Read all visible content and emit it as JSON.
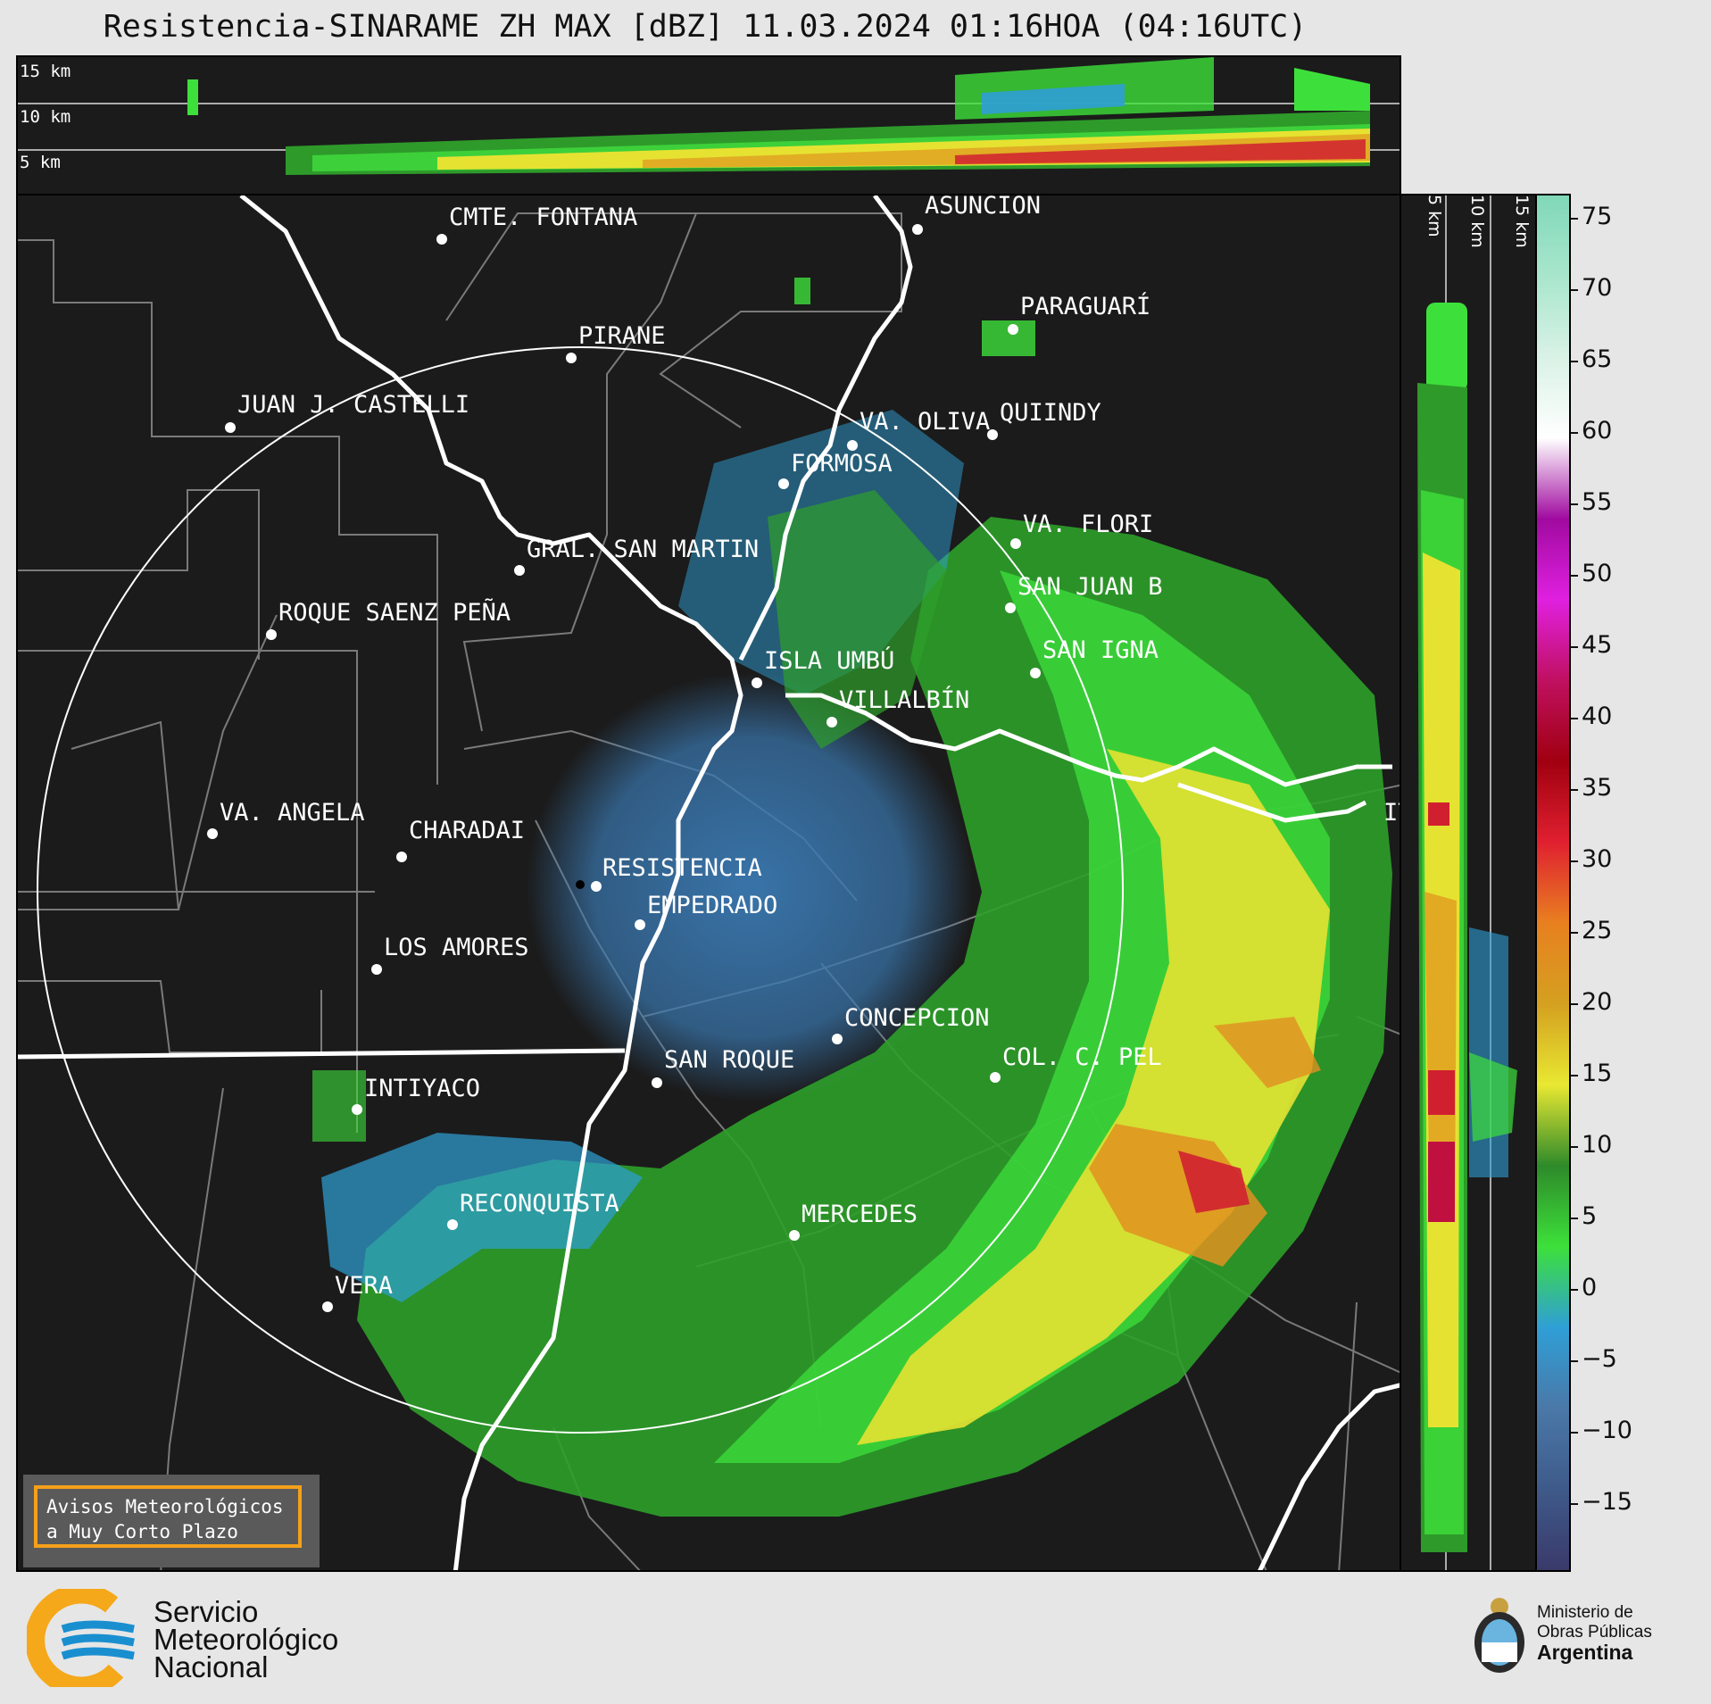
{
  "title": "Resistencia-SINARAME ZH MAX [dBZ] 11.03.2024 01:16HOA (04:16UTC)",
  "top_panel": {
    "height_labels": [
      "15 km",
      "10 km",
      "5 km"
    ]
  },
  "side_panel": {
    "height_labels": [
      "5 km",
      "10 km",
      "15 km"
    ]
  },
  "cities": [
    {
      "name": "CMTE. FONTANA"
    },
    {
      "name": "ASUNCIÓN"
    },
    {
      "name": "PIRANE"
    },
    {
      "name": "PARAGUARÍ"
    },
    {
      "name": "JUAN J. CASTELLI"
    },
    {
      "name": "VA. OLIVA"
    },
    {
      "name": "QUIINDY"
    },
    {
      "name": "FORMOSA"
    },
    {
      "name": "VA. FLORI"
    },
    {
      "name": "GRAL. SAN MARTIN"
    },
    {
      "name": "SAN JUAN B"
    },
    {
      "name": "ROQUE SAENZ PEÑA"
    },
    {
      "name": "SAN IGNA"
    },
    {
      "name": "ISLA UMBÚ"
    },
    {
      "name": "VILLALBÍN"
    },
    {
      "name": "RESISTENCIA"
    },
    {
      "name": "IT"
    },
    {
      "name": "VA. ANGELA"
    },
    {
      "name": "CHARADAI"
    },
    {
      "name": "EMPEDRADO"
    },
    {
      "name": "LOS AMORES"
    },
    {
      "name": "CONCEPCION"
    },
    {
      "name": "COL. C. PEL"
    },
    {
      "name": "SAN ROQUE"
    },
    {
      "name": "INTIYACO"
    },
    {
      "name": "RECONQUISTA"
    },
    {
      "name": "MERCEDES"
    },
    {
      "name": "VERA"
    }
  ],
  "colorbar": {
    "ticks": [
      "75",
      "70",
      "65",
      "60",
      "55",
      "50",
      "45",
      "40",
      "35",
      "30",
      "25",
      "20",
      "15",
      "10",
      "5",
      "0",
      "−5",
      "−10",
      "−15"
    ],
    "colors": [
      "#3a3a6a",
      "#3e5a8a",
      "#4a78a8",
      "#2f9fd6",
      "#3de03a",
      "#2e8a2a",
      "#e8e832",
      "#d4a020",
      "#e88020",
      "#e02030",
      "#a00010",
      "#c01060",
      "#e020e0",
      "#a00aa0",
      "#ffffff",
      "#d9f2e6",
      "#a8e6cc",
      "#80d8b8"
    ]
  },
  "notice": {
    "line1": "Avisos Meteorológicos",
    "line2": "a Muy Corto Plazo"
  },
  "logos": {
    "smn": {
      "line1": "Servicio",
      "line2": "Meteorológico",
      "line3": "Nacional"
    },
    "ministry": {
      "line1": "Ministerio de",
      "line2": "Obras Públicas",
      "line3": "Argentina"
    }
  }
}
